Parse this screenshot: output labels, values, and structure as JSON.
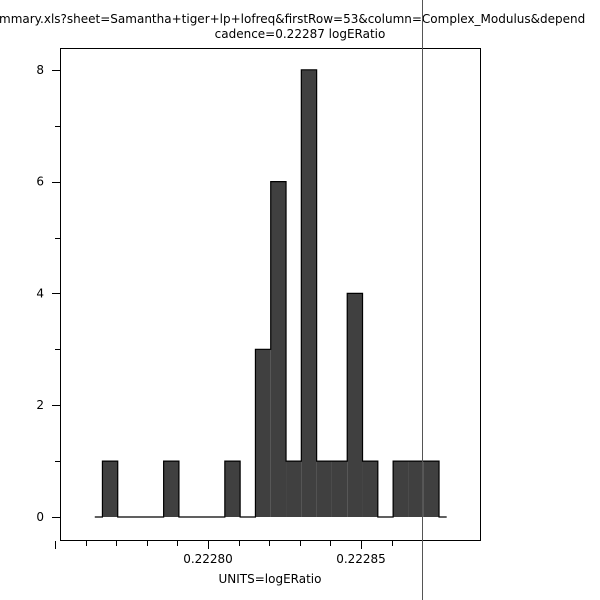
{
  "chart_data": {
    "type": "bar",
    "title": "mmary.xls?sheet=Samantha+tiger+lp+lofreq&firstRow=53&column=Complex_Modulus&depend",
    "subtitle": "cadence=0.22287 logERatio",
    "xlabel": "UNITS=logERatio",
    "ylabel": "",
    "bin_start": 0.2227655,
    "bin_width": 5e-06,
    "counts": [
      1,
      0,
      0,
      0,
      1,
      0,
      0,
      0,
      1,
      0,
      3,
      6,
      1,
      8,
      1,
      1,
      4,
      1,
      0,
      1,
      1,
      1
    ],
    "xlim": [
      0.222773,
      0.22291
    ],
    "ylim": [
      -0.4,
      8.4
    ],
    "x_ticks": [
      "0.22280",
      "0.22285"
    ],
    "x_tick_values": [
      0.2228,
      0.22285
    ],
    "y_ticks": [
      "0",
      "2",
      "4",
      "6",
      "8"
    ],
    "y_tick_values": [
      0,
      2,
      4,
      6,
      8
    ],
    "marker_line": {
      "label": "cadence",
      "value": 0.22287
    },
    "bar_color": "#404040",
    "grid": false,
    "legend": "none"
  }
}
